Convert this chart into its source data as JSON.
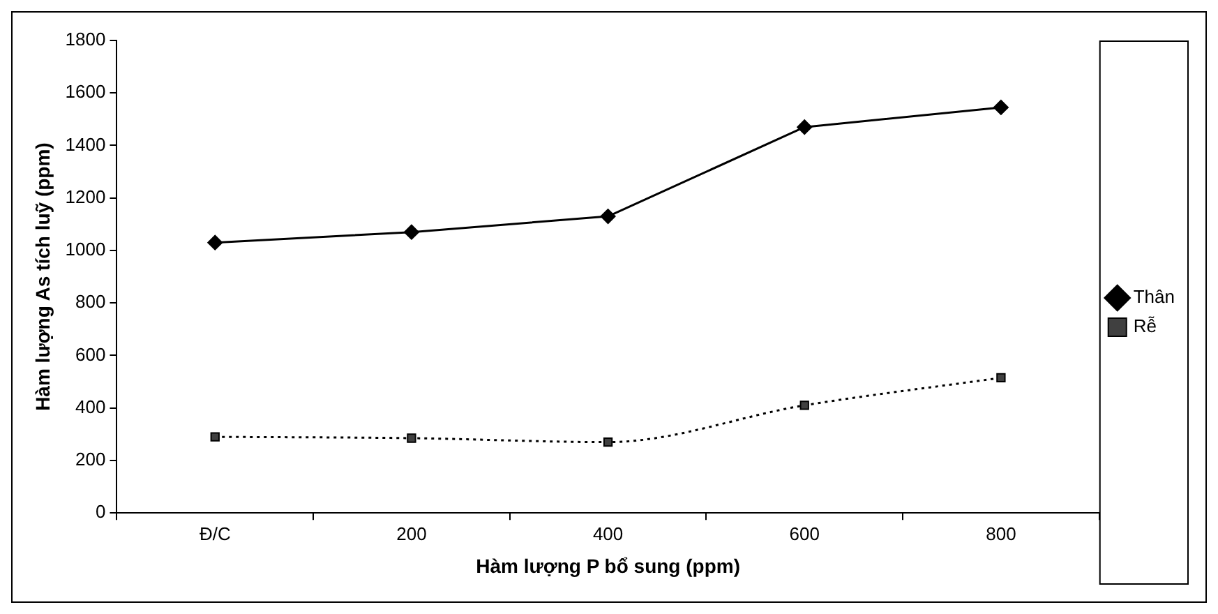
{
  "chart_data": {
    "type": "line",
    "xlabel": "Hàm lượng P bổ sung (ppm)",
    "ylabel": "Hàm lượng As tích luỹ (ppm)",
    "categories": [
      "Đ/C",
      "200",
      "400",
      "600",
      "800"
    ],
    "series": [
      {
        "name": "Thân",
        "color": "#000000",
        "values": [
          1030,
          1070,
          1130,
          1470,
          1545
        ],
        "marker": "diamond",
        "line_style": "solid"
      },
      {
        "name": "Rễ",
        "color": "#404040",
        "values": [
          290,
          285,
          270,
          410,
          515
        ],
        "marker": "square",
        "line_style": "dotted"
      }
    ],
    "ylim": [
      0,
      1800
    ],
    "yticks": [
      0,
      200,
      400,
      600,
      800,
      1000,
      1200,
      1400,
      1600,
      1800
    ],
    "grid": false,
    "legend": "right"
  }
}
